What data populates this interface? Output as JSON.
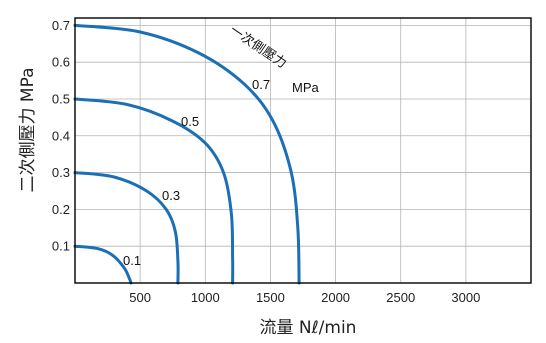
{
  "chart_data": {
    "type": "line",
    "title": "",
    "xlabel": "流量 Nℓ/min",
    "ylabel": "二次側壓力 MPa",
    "xlim": [
      0,
      3500
    ],
    "ylim": [
      0,
      0.72
    ],
    "x_ticks": [
      500,
      1000,
      1500,
      2000,
      2500,
      3000
    ],
    "y_ticks": [
      0.1,
      0.2,
      0.3,
      0.4,
      0.5,
      0.6,
      0.7
    ],
    "grid": true,
    "series_label_title": "一次側壓力",
    "series_label_unit": "MPa",
    "series": [
      {
        "name": "0.1",
        "x": [
          0,
          180,
          290,
          380,
          420,
          430
        ],
        "y": [
          0.1,
          0.093,
          0.075,
          0.04,
          0.01,
          0
        ]
      },
      {
        "name": "0.3",
        "x": [
          0,
          300,
          550,
          700,
          770,
          790,
          790
        ],
        "y": [
          0.3,
          0.288,
          0.25,
          0.2,
          0.14,
          0.06,
          0
        ]
      },
      {
        "name": "0.5",
        "x": [
          0,
          400,
          750,
          1000,
          1140,
          1200,
          1210,
          1210
        ],
        "y": [
          0.5,
          0.485,
          0.44,
          0.38,
          0.3,
          0.19,
          0.07,
          0
        ]
      },
      {
        "name": "0.7",
        "x": [
          0,
          500,
          950,
          1300,
          1520,
          1660,
          1710,
          1720
        ],
        "y": [
          0.7,
          0.682,
          0.625,
          0.54,
          0.44,
          0.3,
          0.15,
          0
        ]
      }
    ]
  }
}
